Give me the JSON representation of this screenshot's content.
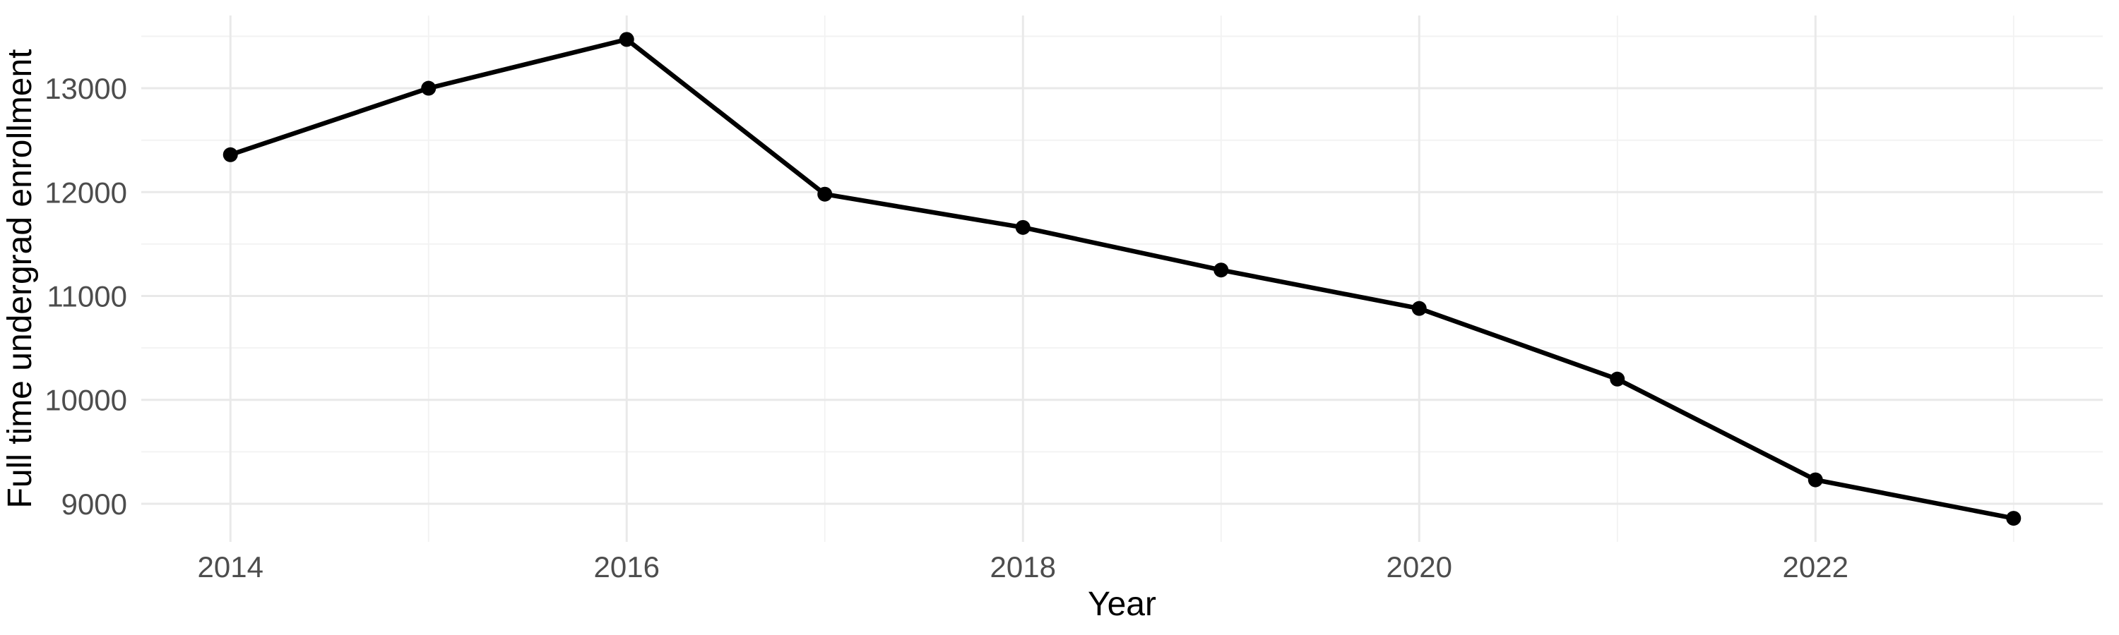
{
  "chart_data": {
    "type": "line",
    "title": "",
    "xlabel": "Year",
    "ylabel": "Full time undergrad enrollment",
    "series": [
      {
        "name": "Full time undergrad enrollment",
        "x": [
          2014,
          2015,
          2016,
          2017,
          2018,
          2019,
          2020,
          2021,
          2022,
          2023
        ],
        "values": [
          12360,
          13000,
          13470,
          11980,
          11660,
          11250,
          10880,
          10200,
          9230,
          8860
        ]
      }
    ],
    "x_major_ticks": [
      2014,
      2016,
      2018,
      2020,
      2022
    ],
    "x_minor_gridlines": [
      2015,
      2017,
      2019,
      2021,
      2023
    ],
    "y_major_ticks": [
      9000,
      10000,
      11000,
      12000,
      13000
    ],
    "y_minor_gridlines": [
      9500,
      10500,
      11500,
      12500,
      13500
    ],
    "xlim": [
      2013.55,
      2023.45
    ],
    "ylim": [
      8633,
      13700
    ],
    "grid": true,
    "legend": false,
    "marker": "point",
    "colors": {
      "line": "#000000",
      "point": "#000000",
      "grid_major": "#e9e9e9",
      "grid_minor": "#f2f2f2",
      "tick_label": "#4d4d4d",
      "axis_title": "#000000",
      "background": "#ffffff"
    }
  }
}
